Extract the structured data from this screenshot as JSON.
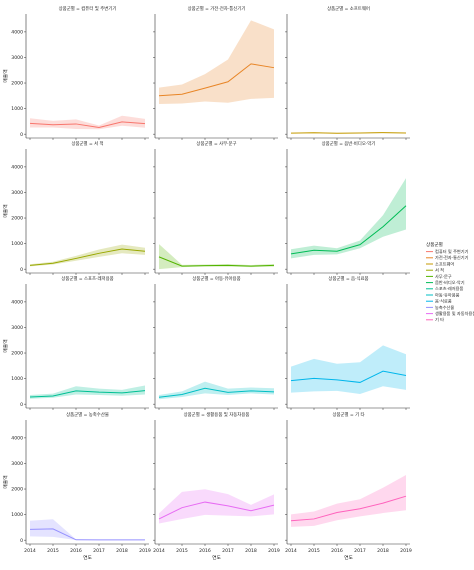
{
  "x_ticks": [
    "2014",
    "2015",
    "2016",
    "2017",
    "2018",
    "2019"
  ],
  "y_ticks": [
    "0",
    "1000",
    "2000",
    "3000",
    "4000"
  ],
  "xlabel": "연도",
  "ylabel": "매출액",
  "legend": {
    "title": "상품군별",
    "placement": "right",
    "entries": [
      {
        "name": "컴퓨터 및 주변기기",
        "color": "#f8766d"
      },
      {
        "name": "가전·전자·통신기기",
        "color": "#e88526"
      },
      {
        "name": "소프트웨어",
        "color": "#c49a00"
      },
      {
        "name": "서 적",
        "color": "#99a800"
      },
      {
        "name": "사무·문구",
        "color": "#53b400"
      },
      {
        "name": "음반·비디오·악기",
        "color": "#00bc56"
      },
      {
        "name": "스포츠·레저용품",
        "color": "#00c094"
      },
      {
        "name": "아동·유아용품",
        "color": "#00bfc4"
      },
      {
        "name": "음·식료품",
        "color": "#00b6eb"
      },
      {
        "name": "농축수산물",
        "color": "#9590ff"
      },
      {
        "name": "생활용품 및 자동차용품",
        "color": "#e76bf3"
      },
      {
        "name": "기 타",
        "color": "#ff62bc"
      }
    ]
  },
  "chart_data": {
    "type": "line",
    "layout": "facet-grid-4x3",
    "x": [
      2014,
      2015,
      2016,
      2017,
      2018,
      2019
    ],
    "xlabel": "연도",
    "ylabel": "매출액",
    "ylim": [
      -150,
      4700
    ],
    "grid": false,
    "legend_placement": "right",
    "series": [
      {
        "name": "컴퓨터 및 주변기기",
        "panel_title": "상품군별 = 컴퓨터 및 주변기기",
        "color": "#f8766d",
        "values": [
          420,
          370,
          400,
          260,
          480,
          410
        ],
        "lower": [
          260,
          260,
          200,
          190,
          330,
          250
        ],
        "upper": [
          620,
          520,
          580,
          340,
          720,
          600
        ]
      },
      {
        "name": "가전·전자·통신기기",
        "panel_title": "상품군별 = 가전·전자·통신기기",
        "color": "#e88526",
        "values": [
          1500,
          1560,
          1800,
          2050,
          2750,
          2600
        ],
        "lower": [
          1180,
          1200,
          1280,
          1230,
          1380,
          1420
        ],
        "upper": [
          1820,
          1940,
          2350,
          2920,
          4450,
          4100
        ]
      },
      {
        "name": "소프트웨어",
        "panel_title": "상품군별 = 소프트웨어",
        "color": "#c49a00",
        "values": [
          40,
          55,
          35,
          45,
          60,
          45
        ],
        "lower": [
          25,
          35,
          20,
          30,
          40,
          30
        ],
        "upper": [
          55,
          75,
          50,
          60,
          80,
          60
        ]
      },
      {
        "name": "서 적",
        "panel_title": "상품군별 = 서 적",
        "color": "#99a800",
        "values": [
          150,
          230,
          420,
          620,
          790,
          700
        ],
        "lower": [
          110,
          180,
          330,
          480,
          620,
          560
        ],
        "upper": [
          190,
          290,
          520,
          770,
          960,
          840
        ]
      },
      {
        "name": "사무·문구",
        "panel_title": "상품군별 = 사무·문구",
        "color": "#53b400",
        "values": [
          480,
          120,
          140,
          150,
          120,
          150
        ],
        "lower": [
          0,
          80,
          100,
          100,
          80,
          100
        ],
        "upper": [
          980,
          170,
          180,
          200,
          160,
          200
        ]
      },
      {
        "name": "음반·비디오·악기",
        "panel_title": "상품군별 = 음반·비디오·악기",
        "color": "#00bc56",
        "values": [
          600,
          740,
          700,
          960,
          1660,
          2480
        ],
        "lower": [
          420,
          560,
          580,
          820,
          1270,
          1550
        ],
        "upper": [
          780,
          920,
          820,
          1120,
          2110,
          3560
        ]
      },
      {
        "name": "스포츠·레저용품",
        "panel_title": "상품군별 = 스포츠·레저용품",
        "color": "#00c094",
        "values": [
          280,
          320,
          520,
          470,
          440,
          530
        ],
        "lower": [
          210,
          250,
          380,
          360,
          330,
          380
        ],
        "upper": [
          360,
          410,
          700,
          610,
          560,
          730
        ]
      },
      {
        "name": "아동·유아용품",
        "panel_title": "상품군별 = 아동·유아용품",
        "color": "#00bfc4",
        "values": [
          270,
          380,
          620,
          460,
          520,
          480
        ],
        "lower": [
          190,
          280,
          420,
          360,
          420,
          380
        ],
        "upper": [
          360,
          500,
          880,
          610,
          650,
          620
        ]
      },
      {
        "name": "음·식료품",
        "panel_title": "상품군별 = 음·식료품",
        "color": "#00b6eb",
        "values": [
          920,
          1010,
          950,
          850,
          1290,
          1120
        ],
        "lower": [
          450,
          500,
          520,
          400,
          700,
          560
        ],
        "upper": [
          1470,
          1770,
          1580,
          1640,
          2300,
          1950
        ]
      },
      {
        "name": "농축수산물",
        "panel_title": "상품군별 = 농축수산물",
        "color": "#9590ff",
        "values": [
          420,
          440,
          15,
          10,
          10,
          10
        ],
        "lower": [
          150,
          130,
          5,
          5,
          5,
          5
        ],
        "upper": [
          760,
          820,
          30,
          20,
          20,
          20
        ]
      },
      {
        "name": "생활용품 및 자동차용품",
        "panel_title": "상품군별 = 생활용품 및 자동차용품",
        "color": "#e76bf3",
        "values": [
          830,
          1270,
          1490,
          1340,
          1150,
          1370
        ],
        "lower": [
          650,
          830,
          990,
          960,
          930,
          1010
        ],
        "upper": [
          1050,
          1890,
          1990,
          1800,
          1380,
          1790
        ]
      },
      {
        "name": "기 타",
        "panel_title": "상품군별 = 기 타",
        "color": "#ff62bc",
        "values": [
          760,
          830,
          1080,
          1230,
          1450,
          1720
        ],
        "lower": [
          520,
          560,
          780,
          930,
          1060,
          1170
        ],
        "upper": [
          1010,
          1120,
          1430,
          1600,
          2050,
          2550
        ]
      }
    ]
  }
}
